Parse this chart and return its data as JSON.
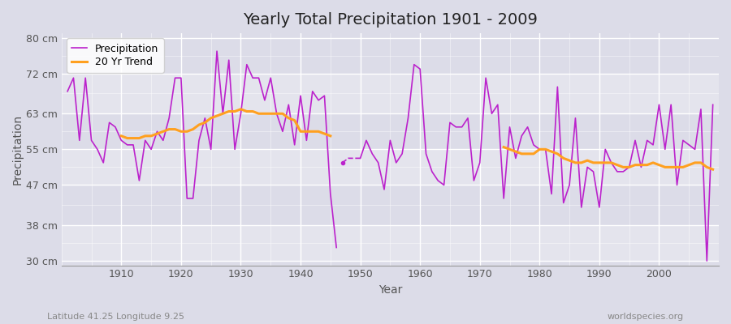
{
  "title": "Yearly Total Precipitation 1901 - 2009",
  "xlabel": "Year",
  "ylabel": "Precipitation",
  "subtitle_left": "Latitude 41.25 Longitude 9.25",
  "subtitle_right": "worldspecies.org",
  "ylim": [
    29,
    81
  ],
  "yticks": [
    30,
    38,
    47,
    55,
    63,
    72,
    80
  ],
  "ytick_labels": [
    "30 cm",
    "38 cm",
    "47 cm",
    "55 cm",
    "63 cm",
    "72 cm",
    "80 cm"
  ],
  "xticks": [
    1910,
    1920,
    1930,
    1940,
    1950,
    1960,
    1970,
    1980,
    1990,
    2000
  ],
  "bg_color": "#dcdce8",
  "precip_color": "#bb22cc",
  "trend_color": "#ffa020",
  "years": [
    1901,
    1902,
    1903,
    1904,
    1905,
    1906,
    1907,
    1908,
    1909,
    1910,
    1911,
    1912,
    1913,
    1914,
    1915,
    1916,
    1917,
    1918,
    1919,
    1920,
    1921,
    1922,
    1923,
    1924,
    1925,
    1926,
    1927,
    1928,
    1929,
    1930,
    1931,
    1932,
    1933,
    1934,
    1935,
    1936,
    1937,
    1938,
    1939,
    1940,
    1941,
    1942,
    1943,
    1944,
    1945,
    1946
  ],
  "precip": [
    68,
    71,
    57,
    71,
    57,
    55,
    52,
    61,
    60,
    57,
    56,
    56,
    48,
    57,
    55,
    59,
    57,
    62,
    71,
    71,
    44,
    44,
    57,
    62,
    55,
    77,
    63,
    75,
    55,
    63,
    74,
    71,
    71,
    66,
    71,
    63,
    59,
    65,
    56,
    67,
    57,
    68,
    66,
    67,
    45,
    33
  ],
  "years2": [
    1947,
    1948,
    1949,
    1950,
    1951,
    1952,
    1953,
    1954,
    1955,
    1956,
    1957,
    1958,
    1959,
    1960,
    1961,
    1962,
    1963,
    1964,
    1965,
    1966,
    1967,
    1968,
    1969,
    1970,
    1971,
    1972,
    1973,
    1974,
    1975,
    1976,
    1977,
    1978,
    1979,
    1980,
    1981,
    1982,
    1983,
    1984,
    1985,
    1986,
    1987,
    1988,
    1989,
    1990,
    1991,
    1992,
    1993,
    1994,
    1995,
    1996,
    1997,
    1998,
    1999,
    2000,
    2001,
    2002,
    2003,
    2004,
    2005,
    2006,
    2007,
    2008,
    2009
  ],
  "precip2": [
    52,
    53,
    53,
    53,
    57,
    54,
    52,
    46,
    57,
    52,
    54,
    62,
    74,
    73,
    54,
    50,
    48,
    47,
    61,
    60,
    60,
    62,
    48,
    52,
    71,
    63,
    65,
    44,
    60,
    53,
    58,
    60,
    56,
    55,
    55,
    45,
    69,
    43,
    47,
    62,
    42,
    51,
    50,
    42,
    55,
    52,
    50,
    50,
    51,
    57,
    51,
    57,
    56,
    65,
    55,
    65,
    47,
    57,
    56,
    55,
    64,
    30,
    65
  ],
  "dot_year": 1947,
  "dot_value": 52,
  "trend1_years": [
    1910,
    1911,
    1912,
    1913,
    1914,
    1915,
    1916,
    1917,
    1918,
    1919,
    1920,
    1921,
    1922,
    1923,
    1924,
    1925,
    1926,
    1927,
    1928,
    1929,
    1930,
    1931,
    1932,
    1933,
    1934,
    1935,
    1936,
    1937,
    1938,
    1939,
    1940,
    1941,
    1942,
    1943,
    1944,
    1945
  ],
  "trend1": [
    58.0,
    57.5,
    57.5,
    57.5,
    58.0,
    58.0,
    58.5,
    59.0,
    59.5,
    59.5,
    59.0,
    59.0,
    59.5,
    60.5,
    61.0,
    62.0,
    62.5,
    63.0,
    63.5,
    63.5,
    64.0,
    63.5,
    63.5,
    63.0,
    63.0,
    63.0,
    63.0,
    63.0,
    62.0,
    61.5,
    59.0,
    59.0,
    59.0,
    59.0,
    58.5,
    58.0
  ],
  "trend2_years": [
    1974,
    1975,
    1976,
    1977,
    1978,
    1979,
    1980,
    1981,
    1982,
    1983,
    1984,
    1985,
    1986,
    1987,
    1988,
    1989,
    1990,
    1991,
    1992,
    1993,
    1994,
    1995,
    1996,
    1997,
    1998,
    1999,
    2000,
    2001,
    2002,
    2003,
    2004,
    2005,
    2006,
    2007,
    2008,
    2009
  ],
  "trend2": [
    55.5,
    55.0,
    54.5,
    54.0,
    54.0,
    54.0,
    55.0,
    55.0,
    54.5,
    54.0,
    53.0,
    52.5,
    52.0,
    52.0,
    52.5,
    52.0,
    52.0,
    52.0,
    52.0,
    51.5,
    51.0,
    51.0,
    51.5,
    51.5,
    51.5,
    52.0,
    51.5,
    51.0,
    51.0,
    51.0,
    51.0,
    51.5,
    52.0,
    52.0,
    51.0,
    50.5
  ]
}
